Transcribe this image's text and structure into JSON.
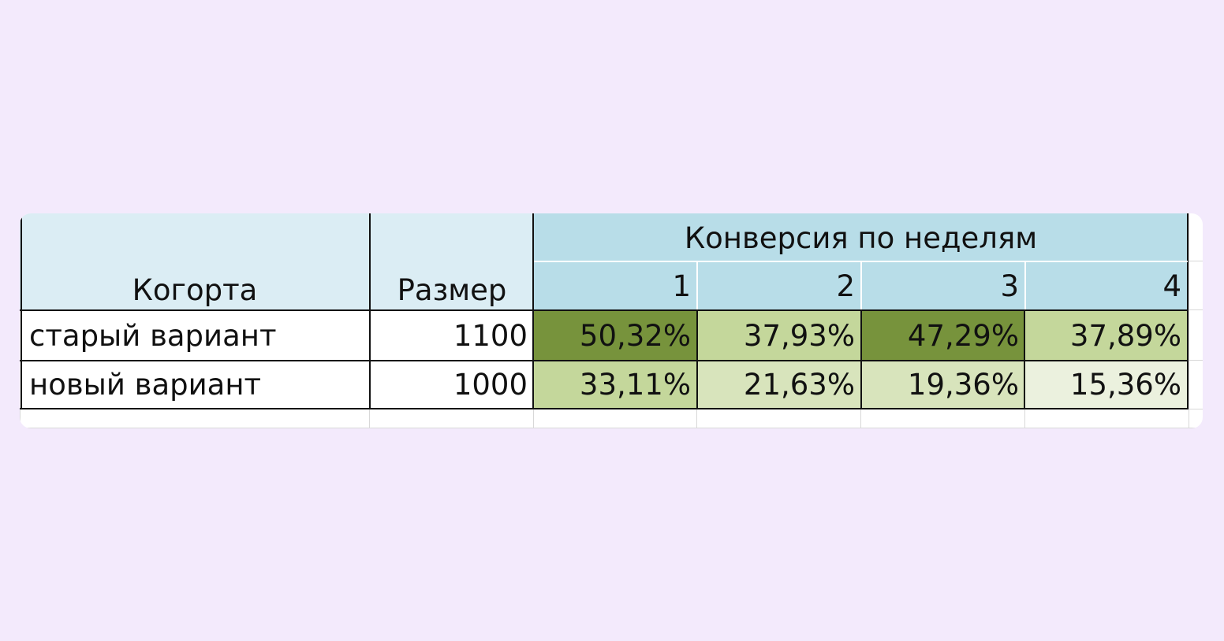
{
  "chart_data": {
    "type": "table",
    "header": {
      "cohort": "Когорта",
      "size": "Размер",
      "group": "Конверсия по неделям",
      "weeks": [
        "1",
        "2",
        "3",
        "4"
      ]
    },
    "rows": [
      {
        "cohort": "старый вариант",
        "size": "1100",
        "values": [
          "50,32%",
          "37,93%",
          "47,29%",
          "37,89%"
        ]
      },
      {
        "cohort": "новый вариант",
        "size": "1000",
        "values": [
          "33,11%",
          "21,63%",
          "19,36%",
          "15,36%"
        ]
      }
    ],
    "cell_colors": [
      [
        "#77933c",
        "#c4d79b",
        "#77933c",
        "#c4d79b"
      ],
      [
        "#c4d79b",
        "#d8e4bc",
        "#d8e4bc",
        "#ebf1de"
      ]
    ]
  }
}
